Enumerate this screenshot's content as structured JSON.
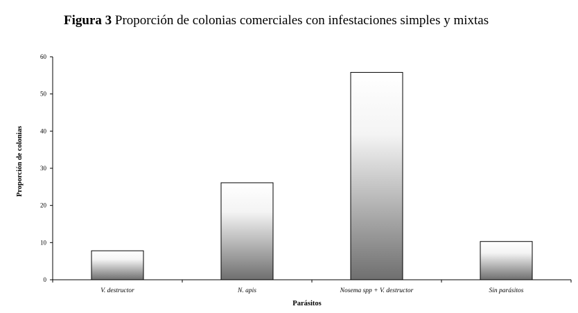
{
  "figure": {
    "label": "Figura 3",
    "caption": "Proporción de colonias comerciales con infestaciones simples y mixtas"
  },
  "chart_data": {
    "type": "bar",
    "categories": [
      "V. destructor",
      "N. apis",
      "Nosema spp + V. destructor",
      "Sin parásitos"
    ],
    "values": [
      7.8,
      26.1,
      55.8,
      10.3
    ],
    "xlabel": "Parásitos",
    "ylabel": "Proporción de colonias",
    "ylim": [
      0,
      60
    ],
    "yticks": [
      0,
      10,
      20,
      30,
      40,
      50,
      60
    ],
    "grid": false,
    "legend": "none",
    "bar_gradient": [
      "#ffffff",
      "#6f6f6f"
    ]
  }
}
